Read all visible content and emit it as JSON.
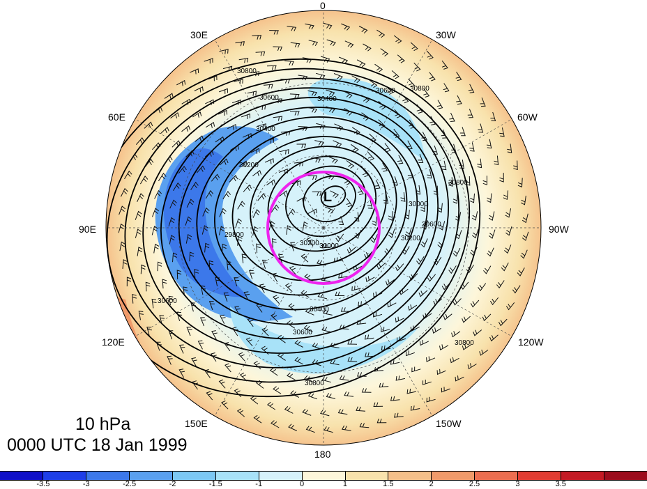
{
  "map": {
    "projection": "north polar stereographic",
    "longitude_labels": {
      "top": "0",
      "upper_left": "30E",
      "upper_right": "30W",
      "left_upper": "60E",
      "right_upper": "60W",
      "left": "90E",
      "right": "90W",
      "left_lower": "120E",
      "right_lower": "120W",
      "lower_left": "150E",
      "lower_right": "150W",
      "bottom": "180"
    },
    "low_marker": "L",
    "contour_labels": [
      "30800",
      "30600",
      "30400",
      "30200",
      "30000",
      "29800",
      "30800",
      "30600",
      "30400",
      "30600",
      "30200",
      "30000",
      "30200",
      "30400",
      "30600",
      "30800",
      "30800",
      "30600",
      "30800"
    ],
    "highlight_circle_color": "#ee22ee"
  },
  "caption": {
    "level": "10 hPa",
    "time": "0000 UTC 18 Jan 1999"
  },
  "colorbar": {
    "colors": [
      "#1010c8",
      "#1e3ee8",
      "#3c78ea",
      "#5aa0ef",
      "#7cc8f4",
      "#a8e2f8",
      "#d6f2fa",
      "#fdf6da",
      "#f8e2ac",
      "#f5c08a",
      "#f09a6a",
      "#ec6e50",
      "#e23c32",
      "#c41a24",
      "#9c0c1c"
    ],
    "tick_labels": [
      "-3.5",
      "-3",
      "-2.5",
      "-2",
      "-1.5",
      "-1",
      "0",
      "1",
      "1.5",
      "2",
      "2.5",
      "3",
      "3.5"
    ]
  }
}
